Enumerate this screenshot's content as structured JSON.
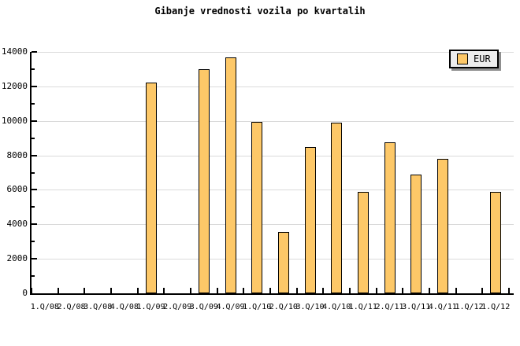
{
  "chart_data": {
    "type": "bar",
    "title": "Gibanje vrednosti vozila po kvartalih",
    "categories": [
      "1.Q/08",
      "2.Q/08",
      "3.Q/08",
      "4.Q/08",
      "1.Q/09",
      "2.Q/09",
      "3.Q/09",
      "4.Q/09",
      "1.Q/10",
      "2.Q/10",
      "3.Q/10",
      "4.Q/10",
      "1.Q/11",
      "2.Q/11",
      "3.Q/11",
      "4.Q/11",
      "1.Q/12",
      "1.Q/12"
    ],
    "series": [
      {
        "name": "EUR",
        "values": [
          null,
          null,
          null,
          null,
          12200,
          null,
          13000,
          13700,
          9950,
          3550,
          8500,
          9900,
          5900,
          8750,
          6900,
          7800,
          null,
          5900
        ]
      }
    ],
    "xlabel": "",
    "ylabel": "",
    "ylim": [
      0,
      14000
    ],
    "y_major_ticks": [
      0,
      2000,
      4000,
      6000,
      8000,
      10000,
      12000,
      14000
    ],
    "y_minor_step": 1000,
    "grid": "horizontal-major",
    "legend": {
      "label": "EUR",
      "position": "top-right"
    },
    "colors": {
      "bar_fill": "#FDC868",
      "bar_border": "#000000",
      "grid": "#DADADA",
      "axis": "#000000",
      "text": "#000000",
      "legend_bg": "#EDEDED",
      "legend_shadow": "#8F8F8F",
      "background": "#FFFFFF"
    }
  }
}
